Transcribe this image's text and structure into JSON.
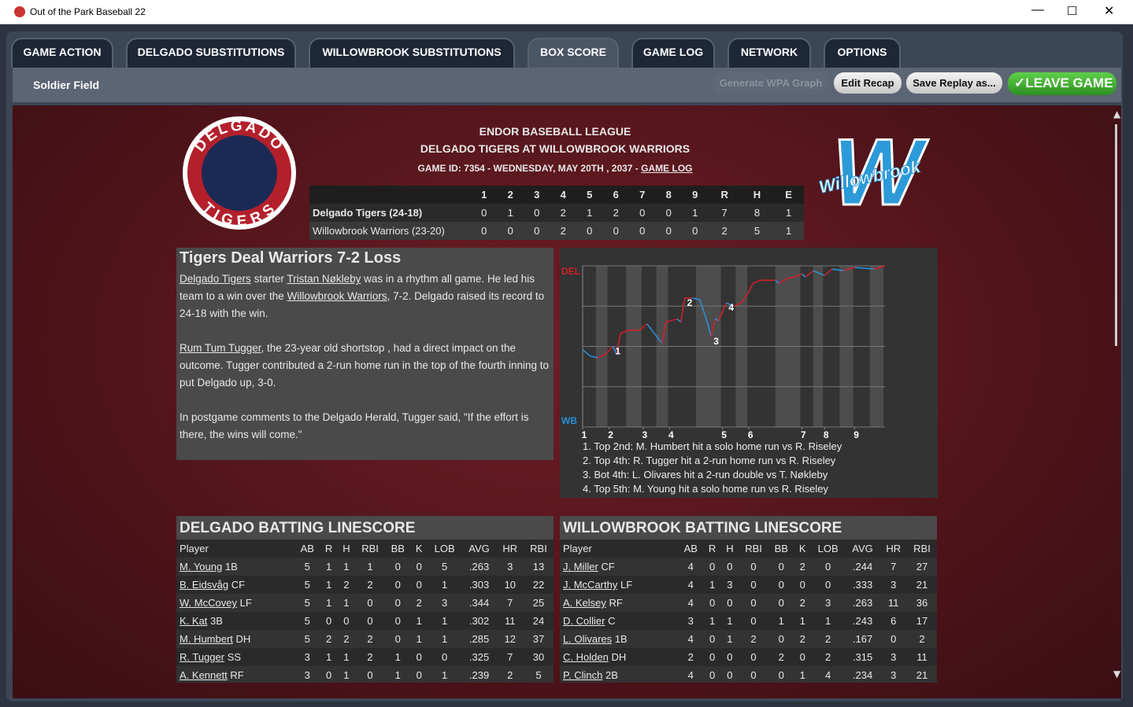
{
  "window": {
    "title": "Out of the Park Baseball 22"
  },
  "tabs": [
    "GAME ACTION",
    "DELGADO SUBSTITUTIONS",
    "WILLOWBROOK SUBSTITUTIONS",
    "BOX SCORE",
    "GAME LOG",
    "NETWORK",
    "OPTIONS"
  ],
  "active_tab": 3,
  "location": "Soldier Field",
  "buttons": [
    "Generate WPA Graph",
    "Edit Recap",
    "Save Replay as...",
    "LEAVE GAME"
  ],
  "header": {
    "league": "ENDOR BASEBALL LEAGUE",
    "matchup": "DELGADO TIGERS AT WILLOWBROOK WARRIORS",
    "game_id": "GAME ID: 7354 - WEDNESDAY, MAY 20TH , 2037 -",
    "game_log_link": "GAME LOG"
  },
  "logos": {
    "home": [
      "DELGADO",
      "TIGERS"
    ],
    "away": "Willowbrook"
  },
  "linescore": {
    "columns": [
      "1",
      "2",
      "3",
      "4",
      "5",
      "6",
      "7",
      "8",
      "9",
      "R",
      "H",
      "E"
    ],
    "rows": [
      {
        "team": "Delgado Tigers (24-18)",
        "values": [
          0,
          1,
          0,
          2,
          1,
          2,
          0,
          0,
          1,
          7,
          8,
          1
        ]
      },
      {
        "team": "Willowbrook Warriors (23-20)",
        "values": [
          0,
          0,
          0,
          2,
          0,
          0,
          0,
          0,
          0,
          2,
          5,
          1
        ]
      }
    ]
  },
  "recap": {
    "title": "Tigers Deal Warriors 7-2 Loss",
    "paragraphs": [
      [
        {
          "link": "Delgado Tigers"
        },
        " starter ",
        {
          "link": "Tristan Nøkleby"
        },
        " was in a rhythm all game. He led his team to a win over the ",
        {
          "link": "Willowbrook Warriors"
        },
        ", 7-2. Delgado raised its record to 24-18 with the win."
      ],
      [
        {
          "link": "Rum Tum Tugger"
        },
        ", the 23-year old shortstop , had a direct impact on the outcome. Tugger contributed a 2-run home run in the top of the fourth inning to put Delgado up, 3-0."
      ],
      [
        "In postgame comments to the Delgado Herald, Tugger said, \"If the effort is there, the wins will come.\""
      ]
    ]
  },
  "wpa": {
    "top_label": "DEL",
    "bottom_label": "WB",
    "up_color": "#d0202a",
    "down_color": "#2a8fd8",
    "xlim": [
      0,
      80
    ],
    "ylim": [
      0,
      100
    ],
    "yticks": [
      0,
      25,
      50,
      75,
      100
    ],
    "xticks": [
      {
        "value": 0,
        "label": "1"
      },
      {
        "value": 7,
        "label": "2"
      },
      {
        "value": 16,
        "label": "3"
      },
      {
        "value": 23,
        "label": "4"
      },
      {
        "value": 37,
        "label": "5"
      },
      {
        "value": 44,
        "label": "6"
      },
      {
        "value": 58,
        "label": "7"
      },
      {
        "value": 64,
        "label": "8"
      },
      {
        "value": 72,
        "label": "9"
      }
    ],
    "x": [
      0,
      2,
      4,
      6,
      8,
      9,
      10,
      12,
      15,
      17,
      19,
      21,
      22,
      25,
      26,
      27,
      29,
      31,
      32,
      33,
      34,
      35,
      36,
      38,
      40,
      42,
      44,
      45,
      47,
      51,
      52,
      54,
      56,
      58,
      59,
      61,
      64,
      66,
      69,
      72,
      77,
      80
    ],
    "values": [
      48,
      44,
      43,
      45,
      50,
      45,
      58,
      60,
      60,
      64,
      58,
      52,
      65,
      67,
      65,
      80,
      80,
      79,
      72,
      65,
      56,
      67,
      66,
      77,
      75,
      77,
      84,
      89,
      91,
      91,
      89,
      92,
      93,
      95,
      93,
      97,
      94,
      98,
      97,
      99,
      98,
      100
    ],
    "events": [
      {
        "label": "1",
        "x": 8
      },
      {
        "label": "2",
        "x": 27
      },
      {
        "label": "3",
        "x": 34
      },
      {
        "label": "4",
        "x": 38
      }
    ],
    "notes": [
      "1. Top 2nd: M. Humbert hit a solo home run vs R. Riseley",
      "2. Top 4th: R. Tugger hit a 2-run home run vs R. Riseley",
      "3. Bot 4th: L. Olivares hit a 2-run double vs T. Nøkleby",
      "4. Top 5th: M. Young hit a solo home run vs R. Riseley"
    ]
  },
  "batting": [
    {
      "title": "DELGADO BATTING LINESCORE",
      "columns": [
        "Player",
        "AB",
        "R",
        "H",
        "RBI",
        "BB",
        "K",
        "LOB",
        "AVG",
        "HR",
        "RBI"
      ],
      "rows": [
        {
          "player": "M. Young",
          "pos": "1B",
          "stats": [
            5,
            1,
            1,
            1,
            0,
            0,
            5,
            ".263",
            3,
            13
          ]
        },
        {
          "player": "B. Eidsvåg",
          "pos": "CF",
          "stats": [
            5,
            1,
            2,
            2,
            0,
            0,
            1,
            ".303",
            10,
            22
          ]
        },
        {
          "player": "W. McCovey",
          "pos": "LF",
          "stats": [
            5,
            1,
            1,
            0,
            0,
            2,
            3,
            ".344",
            7,
            25
          ]
        },
        {
          "player": "K. Kat",
          "pos": "3B",
          "stats": [
            5,
            0,
            0,
            0,
            0,
            1,
            1,
            ".302",
            11,
            24
          ]
        },
        {
          "player": "M. Humbert",
          "pos": "DH",
          "stats": [
            5,
            2,
            2,
            2,
            0,
            1,
            1,
            ".285",
            12,
            37
          ]
        },
        {
          "player": "R. Tugger",
          "pos": "SS",
          "stats": [
            3,
            1,
            1,
            2,
            1,
            0,
            0,
            ".325",
            7,
            30
          ]
        },
        {
          "player": "A. Kennett",
          "pos": "RF",
          "stats": [
            3,
            0,
            1,
            0,
            1,
            0,
            1,
            ".239",
            2,
            5
          ]
        }
      ]
    },
    {
      "title": "WILLOWBROOK BATTING LINESCORE",
      "columns": [
        "Player",
        "AB",
        "R",
        "H",
        "RBI",
        "BB",
        "K",
        "LOB",
        "AVG",
        "HR",
        "RBI"
      ],
      "rows": [
        {
          "player": "J. Miller",
          "pos": "CF",
          "stats": [
            4,
            0,
            0,
            0,
            0,
            2,
            0,
            ".244",
            7,
            27
          ]
        },
        {
          "player": "J. McCarthy",
          "pos": "LF",
          "stats": [
            4,
            1,
            3,
            0,
            0,
            0,
            0,
            ".333",
            3,
            21
          ]
        },
        {
          "player": "A. Kelsey",
          "pos": "RF",
          "stats": [
            4,
            0,
            0,
            0,
            0,
            2,
            3,
            ".263",
            11,
            36
          ]
        },
        {
          "player": "D. Collier",
          "pos": "C",
          "stats": [
            3,
            1,
            1,
            0,
            1,
            1,
            1,
            ".243",
            6,
            17
          ]
        },
        {
          "player": "L. Olivares",
          "pos": "1B",
          "stats": [
            4,
            0,
            1,
            2,
            0,
            2,
            2,
            ".167",
            0,
            2
          ]
        },
        {
          "player": "C. Holden",
          "pos": "DH",
          "stats": [
            2,
            0,
            0,
            0,
            2,
            0,
            2,
            ".315",
            3,
            11
          ]
        },
        {
          "player": "P. Clinch",
          "pos": "2B",
          "stats": [
            4,
            0,
            0,
            0,
            0,
            1,
            4,
            ".234",
            3,
            21
          ]
        }
      ]
    }
  ]
}
